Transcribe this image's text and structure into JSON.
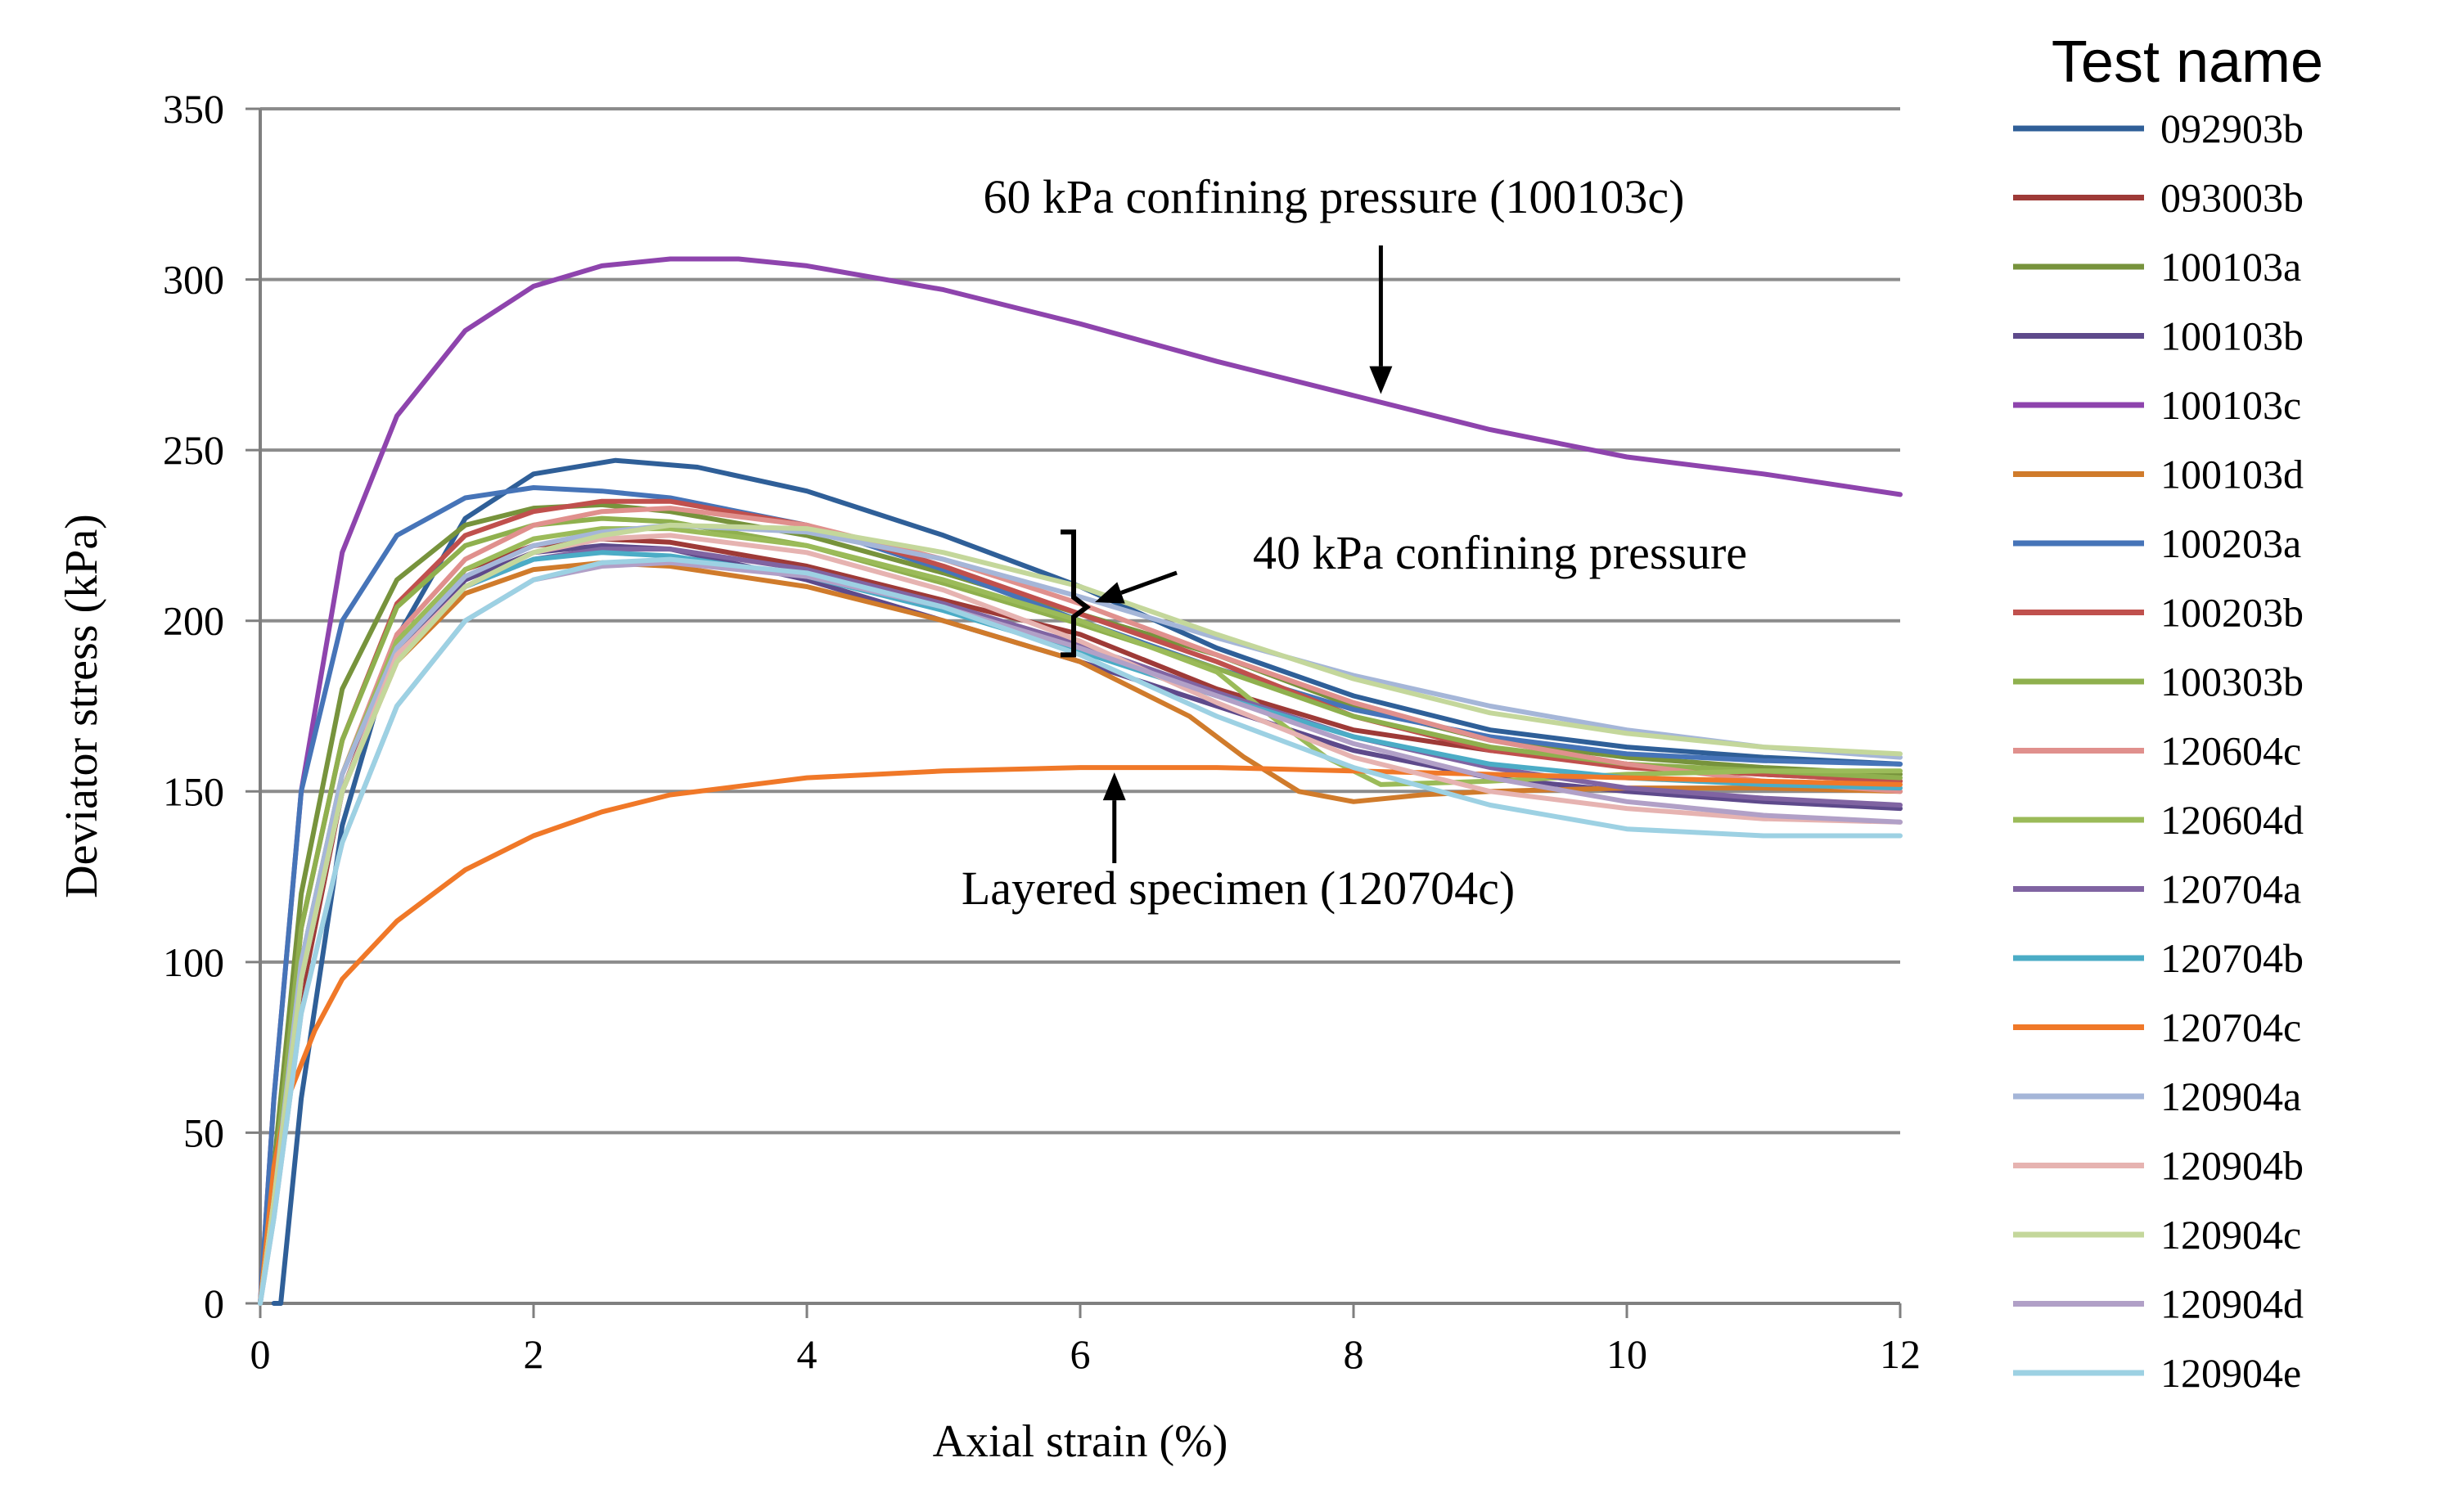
{
  "chart_data": {
    "type": "line",
    "title": "",
    "xlabel": "Axial strain (%)",
    "ylabel": "Deviator stress (kPa)",
    "xlim": [
      0,
      12
    ],
    "ylim": [
      0,
      350
    ],
    "xticks": [
      0,
      2,
      4,
      6,
      8,
      10,
      12
    ],
    "yticks": [
      0,
      50,
      100,
      150,
      200,
      250,
      300,
      350
    ],
    "grid": "horizontal",
    "legend_title": "Test name",
    "legend_position": "right",
    "annotations": [
      {
        "text": "60 kPa confining pressure (100103c)",
        "target": [
          8.2,
          265
        ]
      },
      {
        "text": "40 kPa confining pressure",
        "target": [
          6.0,
          204
        ],
        "bracket": [
          190,
          226
        ]
      },
      {
        "text": "Layered specimen (120704c)",
        "target": [
          6.25,
          157
        ]
      }
    ],
    "series": [
      {
        "name": "092903b",
        "color": "#2f5f98",
        "x": [
          0.1,
          0.15,
          0.3,
          0.6,
          1.0,
          1.5,
          2.0,
          2.6,
          3.2,
          4.0,
          5.0,
          6.0,
          7.0,
          8.0,
          9.0,
          10.0,
          11.0,
          12.0
        ],
        "y": [
          0,
          0,
          60,
          140,
          195,
          230,
          243,
          247,
          245,
          238,
          225,
          210,
          192,
          178,
          168,
          163,
          160,
          158
        ]
      },
      {
        "name": "093003b",
        "color": "#9e3a37",
        "x": [
          0,
          0.1,
          0.3,
          0.6,
          1.0,
          1.5,
          2.0,
          2.5,
          3.0,
          4.0,
          5.0,
          6.0,
          7.0,
          8.0,
          9.0,
          10.0,
          11.0,
          12.0
        ],
        "y": [
          0,
          30,
          90,
          150,
          192,
          215,
          222,
          224,
          223,
          216,
          206,
          196,
          180,
          168,
          162,
          158,
          155,
          153
        ]
      },
      {
        "name": "100103a",
        "color": "#77933c",
        "x": [
          0,
          0.1,
          0.3,
          0.6,
          1.0,
          1.5,
          2.0,
          2.5,
          3.0,
          4.0,
          5.0,
          6.0,
          7.0,
          8.0,
          9.0,
          10.0,
          11.0,
          12.0
        ],
        "y": [
          0,
          40,
          120,
          180,
          212,
          228,
          233,
          234,
          232,
          225,
          214,
          202,
          190,
          175,
          165,
          160,
          157,
          155
        ]
      },
      {
        "name": "100103b",
        "color": "#5e4a8b",
        "x": [
          0,
          0.1,
          0.3,
          0.6,
          1.0,
          1.5,
          2.0,
          2.5,
          3.0,
          4.0,
          5.0,
          6.0,
          7.0,
          8.0,
          9.0,
          10.0,
          11.0,
          12.0
        ],
        "y": [
          0,
          30,
          95,
          150,
          190,
          212,
          220,
          222,
          221,
          212,
          200,
          188,
          175,
          162,
          154,
          150,
          147,
          145
        ]
      },
      {
        "name": "100103c",
        "color": "#8e44ad",
        "x": [
          0,
          0.1,
          0.3,
          0.6,
          1.0,
          1.5,
          2.0,
          2.5,
          3.0,
          3.5,
          4.0,
          5.0,
          6.0,
          7.0,
          8.0,
          9.0,
          10.0,
          11.0,
          12.0
        ],
        "y": [
          0,
          60,
          150,
          220,
          260,
          285,
          298,
          304,
          306,
          306,
          304,
          297,
          287,
          276,
          266,
          256,
          248,
          243,
          237
        ]
      },
      {
        "name": "100103d",
        "color": "#d07b2b",
        "x": [
          0,
          0.1,
          0.3,
          0.6,
          1.0,
          1.5,
          2.0,
          2.5,
          3.0,
          4.0,
          5.0,
          6.0,
          6.8,
          7.2,
          7.6,
          8.0,
          8.5,
          9.0,
          10.0,
          11.0,
          12.0
        ],
        "y": [
          0,
          30,
          95,
          150,
          188,
          208,
          215,
          217,
          216,
          210,
          200,
          188,
          172,
          160,
          150,
          147,
          149,
          150,
          151,
          151,
          150
        ]
      },
      {
        "name": "100203a",
        "color": "#4674b8",
        "x": [
          0,
          0.1,
          0.3,
          0.6,
          1.0,
          1.5,
          2.0,
          2.5,
          3.0,
          4.0,
          5.0,
          6.0,
          7.0,
          8.0,
          9.0,
          10.0,
          11.0,
          12.0
        ],
        "y": [
          0,
          60,
          150,
          200,
          225,
          236,
          239,
          238,
          236,
          228,
          215,
          200,
          186,
          174,
          166,
          161,
          159,
          158
        ]
      },
      {
        "name": "100203b",
        "color": "#c0504d",
        "x": [
          0,
          0.1,
          0.3,
          0.6,
          1.0,
          1.5,
          2.0,
          2.5,
          3.0,
          4.0,
          5.0,
          6.0,
          7.0,
          8.0,
          9.0,
          10.0,
          11.0,
          12.0
        ],
        "y": [
          0,
          35,
          110,
          165,
          205,
          225,
          232,
          235,
          235,
          228,
          216,
          202,
          188,
          172,
          162,
          157,
          155,
          153
        ]
      },
      {
        "name": "100303b",
        "color": "#8fb04e",
        "x": [
          0,
          0.1,
          0.3,
          0.6,
          1.0,
          1.5,
          2.0,
          2.5,
          3.0,
          4.0,
          5.0,
          6.0,
          7.0,
          8.0,
          9.0,
          10.0,
          11.0,
          12.0
        ],
        "y": [
          0,
          35,
          110,
          165,
          204,
          222,
          228,
          230,
          229,
          222,
          211,
          199,
          186,
          172,
          163,
          158,
          156,
          154
        ]
      },
      {
        "name": "120604c",
        "color": "#e0908d",
        "x": [
          0,
          0.1,
          0.3,
          0.6,
          1.0,
          1.5,
          2.0,
          2.5,
          3.0,
          4.0,
          5.0,
          6.0,
          7.0,
          8.0,
          9.0,
          10.0,
          11.0,
          12.0
        ],
        "y": [
          0,
          30,
          100,
          155,
          196,
          218,
          228,
          232,
          233,
          228,
          218,
          205,
          190,
          176,
          165,
          158,
          153,
          150
        ]
      },
      {
        "name": "120604d",
        "color": "#9bbb59",
        "x": [
          0,
          0.1,
          0.3,
          0.6,
          1.0,
          1.5,
          2.0,
          2.5,
          3.0,
          4.0,
          5.0,
          6.0,
          7.0,
          7.4,
          7.8,
          8.2,
          9.0,
          10.0,
          11.0,
          12.0
        ],
        "y": [
          0,
          30,
          100,
          155,
          194,
          215,
          224,
          227,
          227,
          222,
          212,
          200,
          185,
          172,
          160,
          152,
          153,
          155,
          156,
          156
        ]
      },
      {
        "name": "120704a",
        "color": "#8064a2",
        "x": [
          0,
          0.1,
          0.3,
          0.6,
          1.0,
          1.5,
          2.0,
          2.5,
          3.0,
          4.0,
          5.0,
          6.0,
          7.0,
          8.0,
          9.0,
          10.0,
          11.0,
          12.0
        ],
        "y": [
          0,
          30,
          95,
          150,
          190,
          210,
          218,
          221,
          221,
          215,
          205,
          193,
          179,
          166,
          157,
          151,
          148,
          146
        ]
      },
      {
        "name": "120704b",
        "color": "#4bacc6",
        "x": [
          0,
          0.1,
          0.3,
          0.6,
          1.0,
          1.5,
          2.0,
          2.5,
          3.0,
          4.0,
          5.0,
          6.0,
          7.0,
          8.0,
          9.0,
          10.0,
          11.0,
          12.0
        ],
        "y": [
          0,
          30,
          95,
          150,
          190,
          210,
          218,
          220,
          219,
          213,
          203,
          191,
          178,
          166,
          158,
          154,
          152,
          151
        ]
      },
      {
        "name": "120704c",
        "color": "#f07828",
        "x": [
          0,
          0.1,
          0.2,
          0.4,
          0.6,
          1.0,
          1.5,
          2.0,
          2.5,
          3.0,
          4.0,
          5.0,
          6.0,
          7.0,
          8.0,
          9.0,
          10.0,
          11.0,
          12.0
        ],
        "y": [
          0,
          40,
          60,
          80,
          95,
          112,
          127,
          137,
          144,
          149,
          154,
          156,
          157,
          157,
          156,
          155,
          154,
          153,
          152
        ]
      },
      {
        "name": "120904a",
        "color": "#a5b6d8",
        "x": [
          0,
          0.1,
          0.3,
          0.6,
          1.0,
          1.5,
          2.0,
          2.5,
          3.0,
          4.0,
          5.0,
          6.0,
          7.0,
          8.0,
          9.0,
          10.0,
          11.0,
          12.0
        ],
        "y": [
          0,
          30,
          100,
          155,
          192,
          213,
          222,
          226,
          228,
          226,
          218,
          207,
          195,
          184,
          175,
          168,
          163,
          160
        ]
      },
      {
        "name": "120904b",
        "color": "#e6b3b1",
        "x": [
          0,
          0.1,
          0.3,
          0.6,
          1.0,
          1.5,
          2.0,
          2.5,
          3.0,
          4.0,
          5.0,
          6.0,
          7.0,
          8.0,
          9.0,
          10.0,
          11.0,
          12.0
        ],
        "y": [
          0,
          30,
          95,
          150,
          190,
          210,
          220,
          224,
          225,
          220,
          209,
          194,
          176,
          160,
          150,
          145,
          142,
          141
        ]
      },
      {
        "name": "120904c",
        "color": "#c4d79b",
        "x": [
          0,
          0.1,
          0.3,
          0.6,
          1.0,
          1.5,
          2.0,
          2.5,
          3.0,
          4.0,
          5.0,
          6.0,
          7.0,
          8.0,
          9.0,
          10.0,
          11.0,
          12.0
        ],
        "y": [
          0,
          30,
          95,
          150,
          188,
          210,
          220,
          225,
          228,
          227,
          220,
          210,
          196,
          183,
          173,
          167,
          163,
          161
        ]
      },
      {
        "name": "120904d",
        "color": "#b1a0c7",
        "x": [
          0,
          0.1,
          0.3,
          0.6,
          1.0,
          1.5,
          2.0,
          2.5,
          3.0,
          4.0,
          5.0,
          6.0,
          7.0,
          8.0,
          9.0,
          10.0,
          11.0,
          12.0
        ],
        "y": [
          0,
          25,
          85,
          135,
          175,
          200,
          212,
          216,
          217,
          213,
          204,
          192,
          178,
          164,
          154,
          147,
          143,
          141
        ]
      },
      {
        "name": "120904e",
        "color": "#9dd1e3",
        "x": [
          0,
          0.1,
          0.3,
          0.6,
          1.0,
          1.5,
          2.0,
          2.5,
          3.0,
          4.0,
          5.0,
          6.0,
          7.0,
          8.0,
          9.0,
          10.0,
          11.0,
          12.0
        ],
        "y": [
          0,
          25,
          85,
          135,
          175,
          200,
          212,
          217,
          218,
          214,
          204,
          190,
          172,
          157,
          146,
          139,
          137,
          137
        ]
      }
    ]
  }
}
